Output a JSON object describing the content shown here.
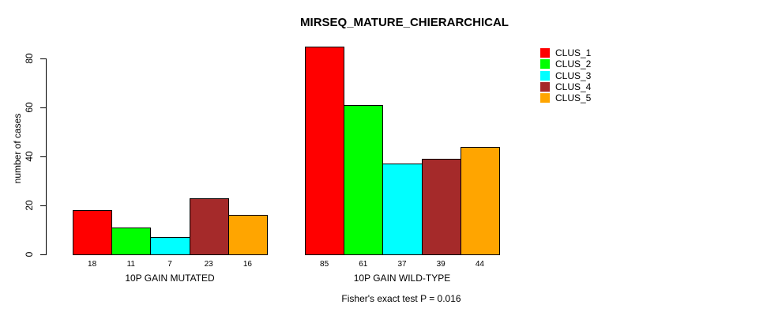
{
  "chart_data": {
    "type": "bar",
    "title": "MIRSEQ_MATURE_CHIERARCHICAL",
    "ylabel": "number of cases",
    "ylim": [
      0,
      85
    ],
    "yticks": [
      0,
      20,
      40,
      60,
      80
    ],
    "grid": false,
    "legend_position": "top-right",
    "categories": [
      "10P GAIN MUTATED",
      "10P GAIN WILD-TYPE"
    ],
    "series": [
      {
        "name": "CLUS_1",
        "color": "#FF0000",
        "values": [
          18,
          85
        ]
      },
      {
        "name": "CLUS_2",
        "color": "#00FF00",
        "values": [
          11,
          61
        ]
      },
      {
        "name": "CLUS_3",
        "color": "#00FFFF",
        "values": [
          7,
          37
        ]
      },
      {
        "name": "CLUS_4",
        "color": "#A52A2A",
        "values": [
          23,
          39
        ]
      },
      {
        "name": "CLUS_5",
        "color": "#FFA500",
        "values": [
          16,
          44
        ]
      }
    ],
    "annotation": "Fisher's exact test P = 0.016"
  }
}
